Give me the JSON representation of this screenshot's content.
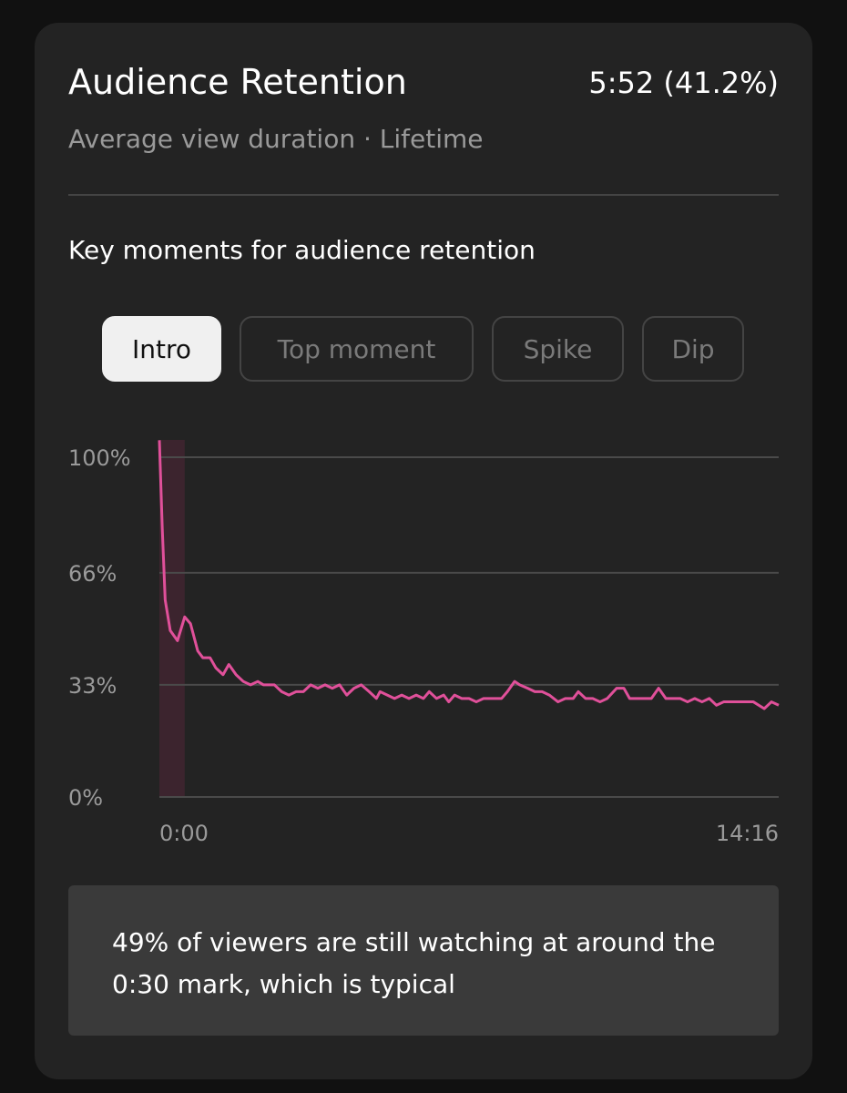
{
  "header": {
    "title": "Audience Retention",
    "value": "5:52 (41.2%)",
    "subtitle": "Average view duration · Lifetime"
  },
  "section_title": "Key moments for audience retention",
  "tabs": [
    {
      "label": "Intro",
      "selected": true
    },
    {
      "label": "Top moment",
      "selected": false
    },
    {
      "label": "Spike",
      "selected": false
    },
    {
      "label": "Dip",
      "selected": false
    }
  ],
  "chart_data": {
    "type": "line",
    "color": "#e0509a",
    "grid": true,
    "intro_range": [
      0,
      35
    ],
    "x": [
      0,
      4,
      8,
      15,
      25,
      35,
      43,
      53,
      60,
      70,
      78,
      88,
      96,
      106,
      116,
      126,
      136,
      144,
      159,
      169,
      179,
      189,
      199,
      209,
      219,
      229,
      239,
      249,
      259,
      269,
      279,
      290,
      300,
      305,
      315,
      325,
      335,
      345,
      355,
      365,
      373,
      383,
      393,
      400,
      408,
      418,
      428,
      438,
      448,
      461,
      473,
      481,
      491,
      498,
      509,
      519,
      529,
      539,
      551,
      561,
      572,
      579,
      589,
      599,
      609,
      619,
      632,
      642,
      650,
      660,
      670,
      680,
      690,
      700,
      710,
      720,
      730,
      740,
      750,
      760,
      770,
      780,
      790,
      801,
      821,
      836,
      846,
      856
    ],
    "values": [
      105,
      79,
      58,
      49,
      46,
      53,
      51,
      43,
      41,
      41,
      38,
      36,
      39,
      36,
      34,
      33,
      34,
      33,
      33,
      31,
      30,
      31,
      31,
      33,
      32,
      33,
      32,
      33,
      30,
      32,
      33,
      31,
      29,
      31,
      30,
      29,
      30,
      29,
      30,
      29,
      31,
      29,
      30,
      28,
      30,
      29,
      29,
      28,
      29,
      29,
      29,
      31,
      34,
      33,
      32,
      31,
      31,
      30,
      28,
      29,
      29,
      31,
      29,
      29,
      28,
      29,
      32,
      32,
      29,
      29,
      29,
      29,
      32,
      29,
      29,
      29,
      28,
      29,
      28,
      29,
      27,
      28,
      28,
      28,
      28,
      26,
      28,
      27
    ],
    "xlim": [
      0,
      856
    ],
    "ylim": [
      0,
      100
    ],
    "xticks": [
      {
        "value": 0,
        "label": "0:00"
      },
      {
        "value": 856,
        "label": "14:16"
      }
    ],
    "yticks": [
      {
        "value": 0,
        "label": "0%"
      },
      {
        "value": 33,
        "label": "33%"
      },
      {
        "value": 66,
        "label": "66%"
      },
      {
        "value": 100,
        "label": "100%"
      }
    ]
  },
  "note": "49% of viewers are still watching at around the 0:30 mark, which is typical"
}
